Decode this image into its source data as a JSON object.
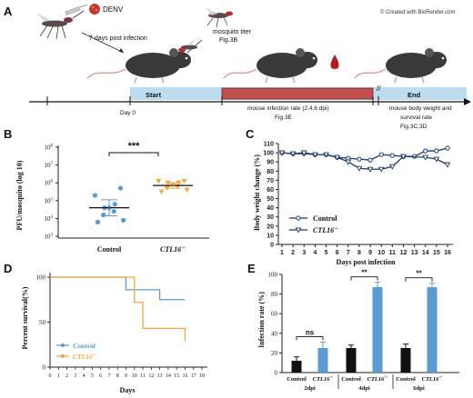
{
  "panel_labels": [
    "A",
    "B",
    "C",
    "D",
    "E"
  ],
  "panel_a": {
    "denv_label": "DENV",
    "days_label": "7 days post infection",
    "titer_label": "mosquito titer",
    "titer_fig": "Fig.3B",
    "credit": "© Created with BioRender.com",
    "start_label": "Start",
    "end_label": "End",
    "day0_label": "Day 0",
    "infection_label": "mouse infection rate (2,4,6 dpi)",
    "infection_fig": "Fig.3E",
    "weight_label": "mouse body weight and",
    "survival_label": "survival rate",
    "weight_fig": "Fig.3C,3D"
  },
  "chart_data": [
    {
      "panel": "B",
      "type": "scatter",
      "ylabel": "PFU/mosquito (log 10)",
      "ytick_labels": [
        "10^3",
        "10^4",
        "10^5",
        "10^6",
        "10^7",
        "10^8"
      ],
      "ytick_values": [
        3,
        4,
        5,
        6,
        7,
        8
      ],
      "ylim": [
        2.9,
        8.1
      ],
      "categories": [
        "Control",
        "CTL16-/-"
      ],
      "cat_display": [
        "Control",
        "CTL16"
      ],
      "cat_sup": [
        "",
        "-/-"
      ],
      "series": [
        {
          "name": "Control",
          "color": "#5b9bd5",
          "marker": "circle",
          "values": [
            5.7,
            5.3,
            4.8,
            4.6,
            4.6,
            4.4,
            4.2,
            3.9,
            3.8
          ],
          "mean": 4.6,
          "sem": [
            4.15,
            5.05
          ]
        },
        {
          "name": "CTL16-/-",
          "color": "#f4a742",
          "marker": "triangle-down",
          "values": [
            6.1,
            6.1,
            6.0,
            6.0,
            5.9,
            5.8,
            5.7,
            5.6,
            5.5
          ],
          "mean": 5.85,
          "sem": [
            5.7,
            6.0
          ]
        }
      ],
      "significance": "***"
    },
    {
      "panel": "C",
      "type": "line",
      "ylabel": "Body weight change (%)",
      "xlabel": "Days post infection",
      "x": [
        1,
        2,
        3,
        4,
        5,
        6,
        7,
        8,
        9,
        10,
        11,
        12,
        13,
        14,
        15,
        16
      ],
      "xlim": [
        1,
        16
      ],
      "ylim": [
        0,
        110
      ],
      "yticks": [
        0,
        10,
        20,
        30,
        40,
        50,
        60,
        70,
        80,
        90,
        100,
        110
      ],
      "series": [
        {
          "name": "Control",
          "sup": "",
          "marker": "circle",
          "color": "#1f3864",
          "values": [
            100,
            99,
            99,
            98,
            98,
            95,
            94,
            93,
            92,
            98,
            97,
            96,
            96,
            102,
            102,
            105
          ]
        },
        {
          "name": "CTL16",
          "sup": "-/-",
          "marker": "triangle-down",
          "color": "#1f3864",
          "values": [
            100,
            99,
            100,
            98,
            98,
            95,
            90,
            83,
            82,
            82,
            85,
            96,
            null,
            95,
            93,
            87
          ]
        }
      ]
    },
    {
      "panel": "D",
      "type": "line",
      "subtype": "survival-step",
      "ylabel": "Percent survival(%)",
      "xlabel": "Days",
      "xlim": [
        0,
        18
      ],
      "xticks": [
        0,
        1,
        2,
        3,
        4,
        5,
        6,
        7,
        8,
        9,
        10,
        11,
        12,
        13,
        14,
        15,
        16,
        17,
        18
      ],
      "ylim": [
        0,
        100
      ],
      "yticks": [
        0,
        50,
        100
      ],
      "series": [
        {
          "name": "Control",
          "sup": "",
          "color": "#5b9bd5",
          "steps": [
            [
              0,
              100
            ],
            [
              9,
              100
            ],
            [
              9,
              86
            ],
            [
              13,
              86
            ],
            [
              13,
              75
            ],
            [
              16,
              75
            ]
          ]
        },
        {
          "name": "CTL16",
          "sup": "-/-",
          "color": "#f4a742",
          "steps": [
            [
              0,
              100
            ],
            [
              9,
              100
            ],
            [
              10,
              100
            ],
            [
              10,
              72
            ],
            [
              11,
              72
            ],
            [
              11,
              43
            ],
            [
              16,
              43
            ],
            [
              16,
              29
            ]
          ]
        }
      ]
    },
    {
      "panel": "E",
      "type": "bar",
      "ylabel": "Infection rate (%)",
      "ylim": [
        0,
        100
      ],
      "yticks": [
        0,
        20,
        40,
        60,
        80,
        100
      ],
      "groups": [
        "2dpi",
        "4dpi",
        "6dpi"
      ],
      "categories": [
        "Control",
        "CTL16-/-",
        "Control",
        "CTL16-/-",
        "Control",
        "CTL16-/-"
      ],
      "cat_display": [
        "Control",
        "CTL16",
        "Control",
        "CTL16",
        "Control",
        "CTL16"
      ],
      "cat_sup": [
        "",
        "-/-",
        "",
        "-/-",
        "",
        "-/-"
      ],
      "values": [
        12,
        25,
        25,
        87,
        25,
        87
      ],
      "errors": [
        4,
        6,
        3,
        5,
        4,
        4
      ],
      "colors": [
        "#111111",
        "#5b9bd5",
        "#111111",
        "#5b9bd5",
        "#111111",
        "#5b9bd5"
      ],
      "significance": [
        "ns",
        "**",
        "**"
      ]
    }
  ]
}
